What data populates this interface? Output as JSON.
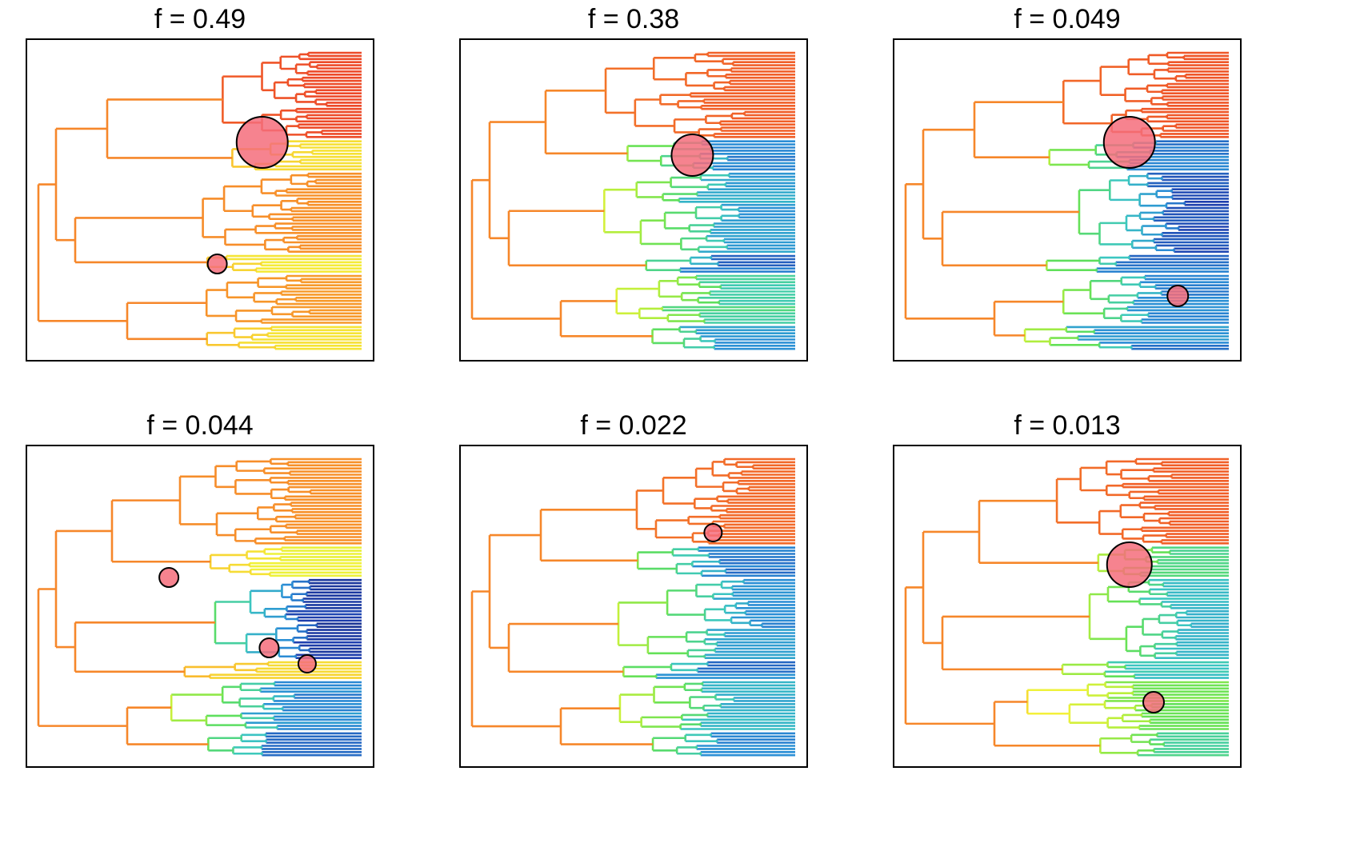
{
  "figure": {
    "panels": [
      {
        "title": "f = 0.49"
      },
      {
        "title": "f = 0.38"
      },
      {
        "title": "f = 0.049"
      },
      {
        "title": "f = 0.044"
      },
      {
        "title": "f = 0.022"
      },
      {
        "title": "f = 0.013"
      }
    ],
    "colors": {
      "shift_marker_fill": "#f46d7b",
      "shift_marker_stroke": "#000000",
      "rate_gradient": [
        "#08154a",
        "#1f3fae",
        "#2b8ed6",
        "#3cc7c1",
        "#5fe05a",
        "#b8ef3b",
        "#f4f23a",
        "#f9c42f",
        "#f7922a",
        "#f05a28",
        "#e8322a"
      ]
    }
  }
}
